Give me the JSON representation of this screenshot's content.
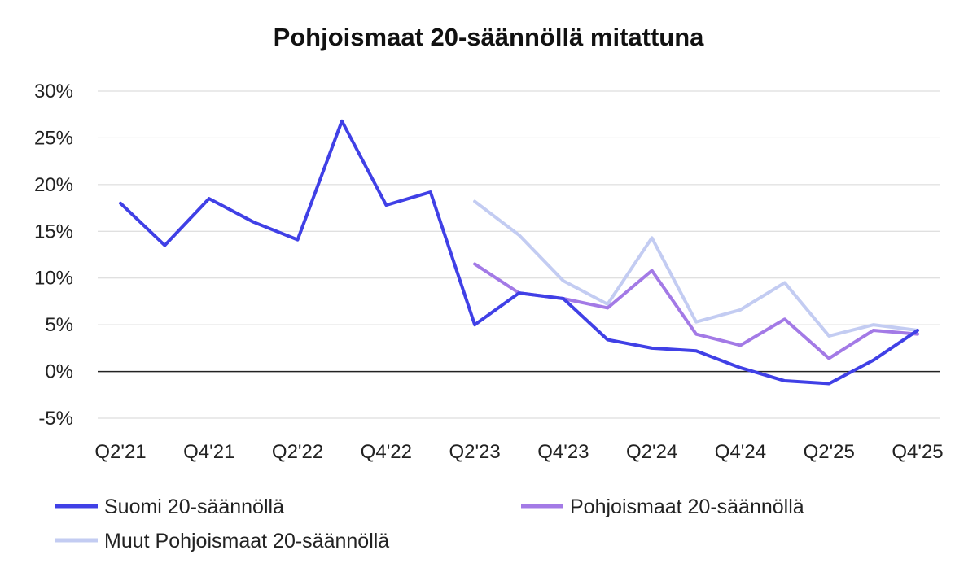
{
  "chart_data": {
    "type": "line",
    "title": "Pohjoismaat 20-säännöllä mitattuna",
    "xlabel": "",
    "ylabel": "",
    "ylim": [
      -5,
      30
    ],
    "yticks": [
      30,
      25,
      20,
      15,
      10,
      5,
      0,
      -5
    ],
    "ytick_labels": [
      "30%",
      "25%",
      "20%",
      "15%",
      "10%",
      "5%",
      "0%",
      "-5%"
    ],
    "categories": [
      "Q2'21",
      "Q3'21",
      "Q4'21",
      "Q1'22",
      "Q2'22",
      "Q3'22",
      "Q4'22",
      "Q1'23",
      "Q2'23",
      "Q3'23",
      "Q4'23",
      "Q1'24",
      "Q2'24",
      "Q3'24",
      "Q4'24",
      "Q1'25",
      "Q2'25",
      "Q3'25",
      "Q4'25"
    ],
    "xtick_labels": [
      "Q2'21",
      "Q4'21",
      "Q2'22",
      "Q4'22",
      "Q2'23",
      "Q4'23",
      "Q2'24",
      "Q4'24",
      "Q2'25",
      "Q4'25"
    ],
    "grid": true,
    "legend_position": "bottom",
    "series": [
      {
        "name": "Suomi 20-säännöllä",
        "color": "#4040e6",
        "values": [
          18.0,
          13.5,
          18.5,
          16.0,
          14.1,
          26.8,
          17.8,
          19.2,
          5.0,
          8.4,
          7.8,
          3.4,
          2.5,
          2.2,
          0.4,
          -1.0,
          -1.3,
          1.2,
          4.4
        ]
      },
      {
        "name": "Pohjoismaat 20-säännöllä",
        "color": "#a37ae6",
        "values": [
          null,
          null,
          null,
          null,
          null,
          null,
          null,
          null,
          11.5,
          8.4,
          7.8,
          6.8,
          10.8,
          4.0,
          2.8,
          5.6,
          1.4,
          4.4,
          4.0
        ]
      },
      {
        "name": "Muut Pohjoismaat 20-säännöllä",
        "color": "#c3ccf2",
        "values": [
          null,
          null,
          null,
          null,
          null,
          null,
          null,
          null,
          18.2,
          14.6,
          9.7,
          7.2,
          14.3,
          5.3,
          6.6,
          9.5,
          3.8,
          5.0,
          4.4
        ]
      }
    ]
  }
}
